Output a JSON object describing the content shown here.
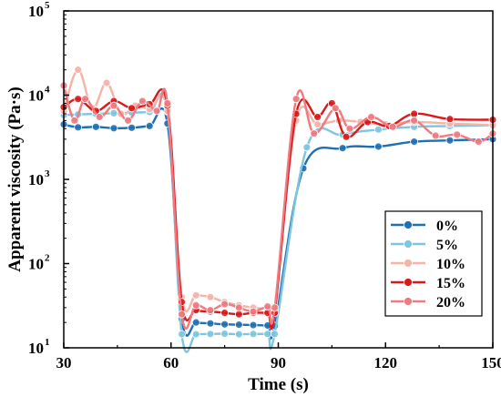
{
  "chart_data": {
    "type": "line",
    "xlabel": "Time (s)",
    "ylabel": "Apparent viscosity (Pa·s)",
    "xlim": [
      30,
      150
    ],
    "ylim": [
      10,
      100000
    ],
    "yscale": "log",
    "xticks": [
      30,
      60,
      90,
      120,
      150
    ],
    "yticks": [
      {
        "value": 10,
        "base": "10",
        "exp": "1"
      },
      {
        "value": 100,
        "base": "10",
        "exp": "2"
      },
      {
        "value": 1000,
        "base": "10",
        "exp": "3"
      },
      {
        "value": 10000,
        "base": "10",
        "exp": "4"
      },
      {
        "value": 100000,
        "base": "10",
        "exp": "5"
      }
    ],
    "legend_position": "bottom-right",
    "series": [
      {
        "name": "0%",
        "color": "#1f6fb4",
        "x": [
          30,
          34,
          39,
          44,
          49,
          54,
          59,
          63,
          67,
          71,
          75,
          79,
          83,
          87,
          89,
          97,
          108,
          118,
          128,
          138,
          150
        ],
        "y": [
          4500,
          4150,
          4200,
          4050,
          4100,
          4300,
          4600,
          22,
          20,
          19.5,
          19,
          18.8,
          18.6,
          18.4,
          18.2,
          1350,
          2350,
          2450,
          2800,
          2900,
          3000
        ]
      },
      {
        "name": "5%",
        "color": "#7ec5df",
        "x": [
          30,
          34,
          39,
          44,
          49,
          54,
          59,
          63,
          67,
          71,
          75,
          79,
          83,
          87,
          89,
          98,
          108,
          118,
          128,
          138,
          150
        ],
        "y": [
          5800,
          5900,
          6000,
          6100,
          6200,
          6300,
          6400,
          14.5,
          14.5,
          14.6,
          14.7,
          14.5,
          14.6,
          14.6,
          14.6,
          2400,
          3400,
          3900,
          4200,
          4300,
          4400
        ]
      },
      {
        "name": "10%",
        "color": "#f6b3a8",
        "x": [
          30,
          34,
          38,
          42,
          46,
          50,
          54,
          59,
          63,
          67,
          71,
          75,
          79,
          83,
          87,
          89,
          95,
          101,
          107,
          113,
          120,
          128,
          138,
          150
        ],
        "y": [
          6500,
          20000,
          7000,
          14000,
          6000,
          7500,
          6800,
          6500,
          40,
          42,
          40,
          35,
          32,
          30,
          29,
          28,
          5000,
          4500,
          5000,
          4800,
          4500,
          4800,
          4600,
          4400
        ]
      },
      {
        "name": "15%",
        "color": "#d91a1a",
        "x": [
          30,
          34,
          39,
          44,
          49,
          54,
          59,
          63,
          67,
          71,
          75,
          79,
          83,
          87,
          89,
          95,
          101,
          105,
          109,
          115,
          121,
          128,
          138,
          150
        ],
        "y": [
          7200,
          9000,
          6500,
          8500,
          7000,
          7800,
          7500,
          35,
          28,
          27,
          26,
          25,
          26,
          26,
          26,
          6000,
          5500,
          8000,
          3200,
          4800,
          4300,
          6000,
          5200,
          5100
        ]
      },
      {
        "name": "20%",
        "color": "#f07a80",
        "x": [
          30,
          33,
          36,
          40,
          44,
          48,
          52,
          56,
          59,
          63,
          67,
          71,
          75,
          79,
          83,
          87,
          89,
          95,
          100,
          106,
          110,
          116,
          122,
          128,
          134,
          140,
          146,
          150
        ],
        "y": [
          13000,
          5000,
          9000,
          5500,
          7500,
          5000,
          8500,
          6500,
          8000,
          25,
          32,
          28,
          33,
          30,
          27,
          31,
          30,
          9000,
          3500,
          7000,
          4000,
          5500,
          4200,
          5000,
          3300,
          3400,
          2800,
          3500
        ]
      }
    ]
  }
}
